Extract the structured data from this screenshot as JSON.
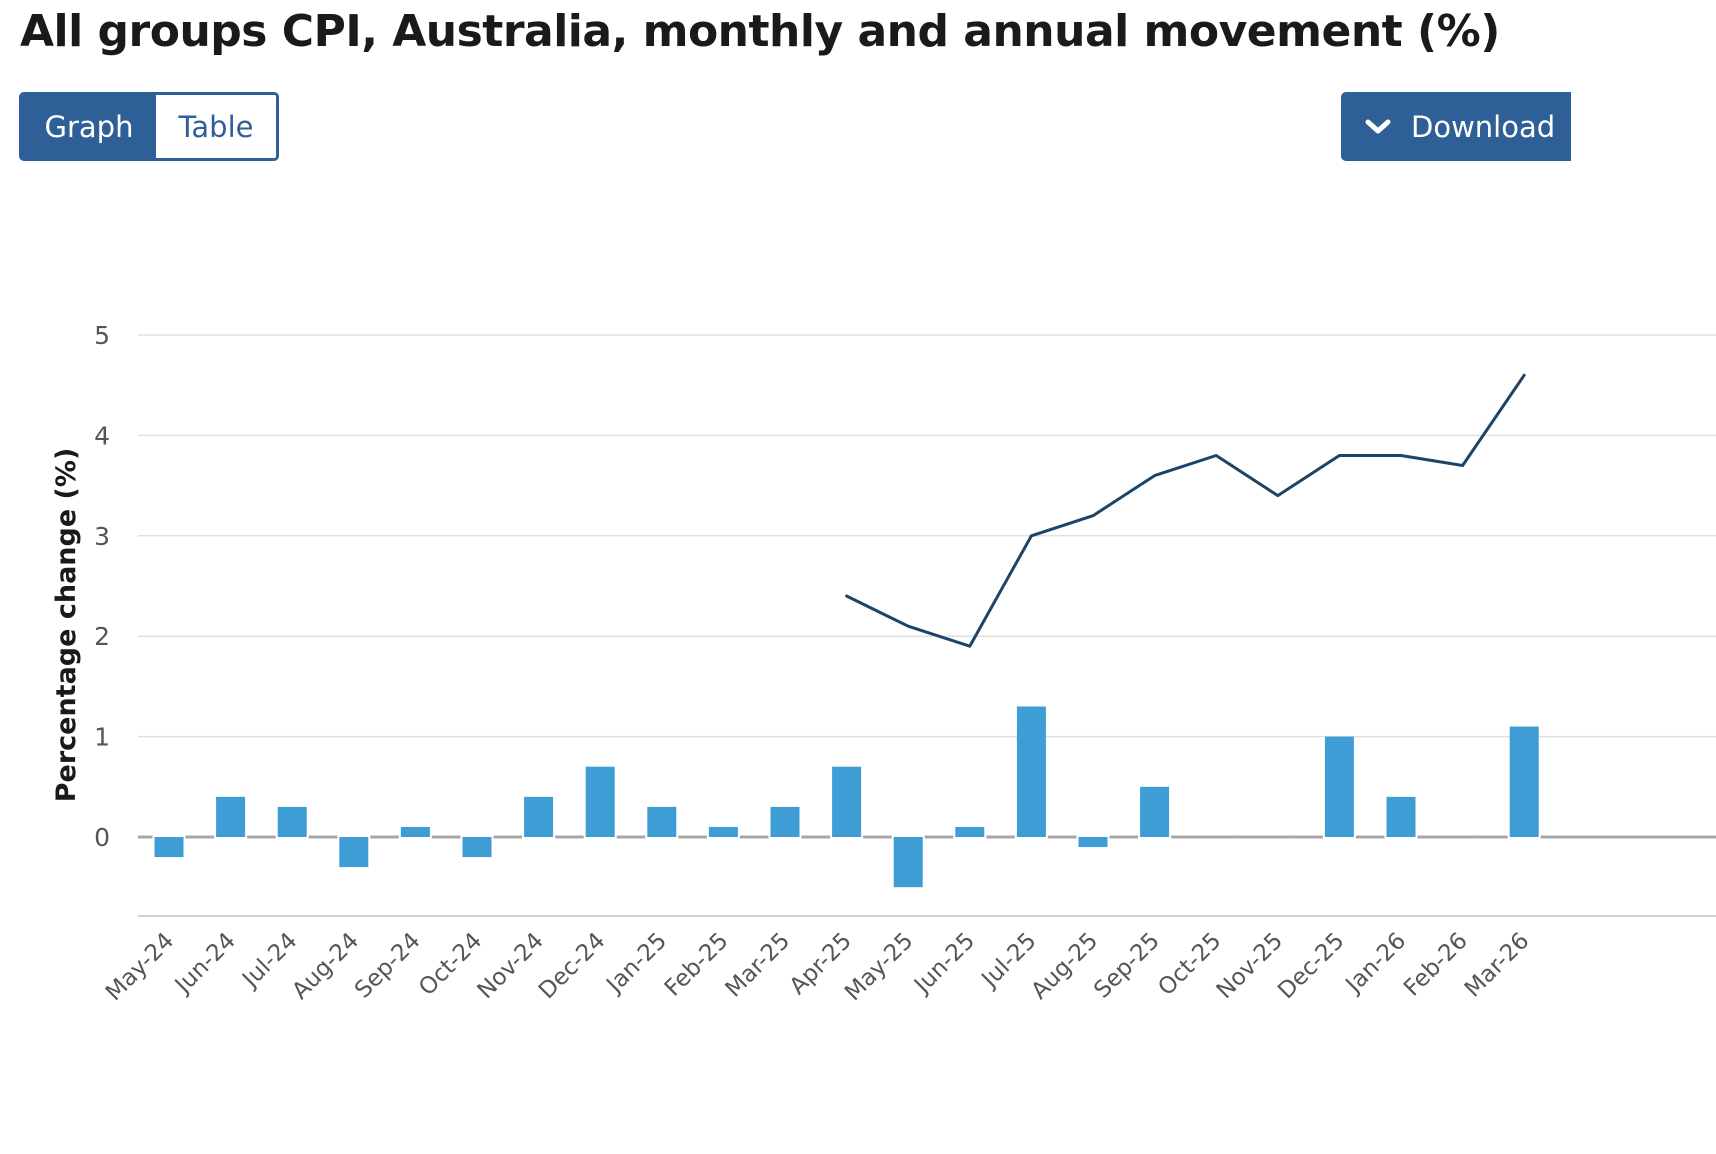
{
  "title": "All groups CPI, Australia, monthly and annual movement (%)",
  "toggle": {
    "graph_label": "Graph",
    "table_label": "Table",
    "selected": "Graph"
  },
  "download": {
    "label": "Download",
    "icon": "chevron-down-icon"
  },
  "colors": {
    "primary": "#2e5f96",
    "bar": "#3d9dd4",
    "line": "#1b4468",
    "grid": "#e0e0e0"
  },
  "chart_data": {
    "type": "bar",
    "ylabel": "Percentage change (%)",
    "xlabel": "",
    "ylim": [
      -0.75,
      5
    ],
    "yticks": [
      0,
      1,
      2,
      3,
      4,
      5
    ],
    "grid": true,
    "categories": [
      "May-24",
      "Jun-24",
      "Jul-24",
      "Aug-24",
      "Sep-24",
      "Oct-24",
      "Nov-24",
      "Dec-24",
      "Jan-25",
      "Feb-25",
      "Mar-25",
      "Apr-25",
      "May-25",
      "Jun-25",
      "Jul-25",
      "Aug-25",
      "Sep-25",
      "Oct-25",
      "Nov-25",
      "Dec-25",
      "Jan-26",
      "Feb-26",
      "Mar-26"
    ],
    "series": [
      {
        "type": "bar",
        "values": [
          -0.2,
          0.4,
          0.3,
          -0.3,
          0.1,
          -0.2,
          0.4,
          0.7,
          0.3,
          0.1,
          0.3,
          0.7,
          -0.5,
          0.1,
          1.3,
          -0.1,
          0.5,
          0.0,
          0.0,
          1.0,
          0.4,
          0.0,
          1.1
        ]
      },
      {
        "type": "line",
        "values": [
          null,
          null,
          null,
          null,
          null,
          null,
          null,
          null,
          null,
          null,
          null,
          2.4,
          2.1,
          1.9,
          3.0,
          3.2,
          3.6,
          3.8,
          3.4,
          3.8,
          3.8,
          3.7,
          4.6
        ]
      }
    ]
  }
}
